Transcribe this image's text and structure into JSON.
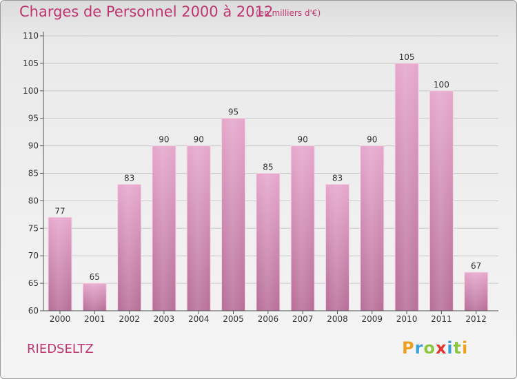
{
  "header": {
    "title": "Charges de Personnel 2000 à 2012",
    "subtitle": "(en milliers d'€)"
  },
  "footer": {
    "commune": "RIEDSELTZ",
    "logo_text": "Proxiti"
  },
  "colors": {
    "title": "#c03470",
    "bar_top": "#e6a8cc",
    "bar_bottom": "#b87099",
    "logo": [
      "#f0a020",
      "#3aa0d8",
      "#8cc63f",
      "#e5322d",
      "#3aa0d8",
      "#8cc63f",
      "#f0a020"
    ]
  },
  "chart_data": {
    "type": "bar",
    "categories": [
      "2000",
      "2001",
      "2002",
      "2003",
      "2004",
      "2005",
      "2006",
      "2007",
      "2008",
      "2009",
      "2010",
      "2011",
      "2012"
    ],
    "values": [
      77,
      65,
      83,
      90,
      90,
      95,
      85,
      90,
      83,
      90,
      105,
      100,
      67
    ],
    "title": "Charges de Personnel 2000 à 2012",
    "subtitle": "(en milliers d'€)",
    "xlabel": "",
    "ylabel": "",
    "ylim": [
      60,
      110
    ],
    "yticks": [
      60,
      65,
      70,
      75,
      80,
      85,
      90,
      95,
      100,
      105,
      110
    ],
    "grid": true
  }
}
